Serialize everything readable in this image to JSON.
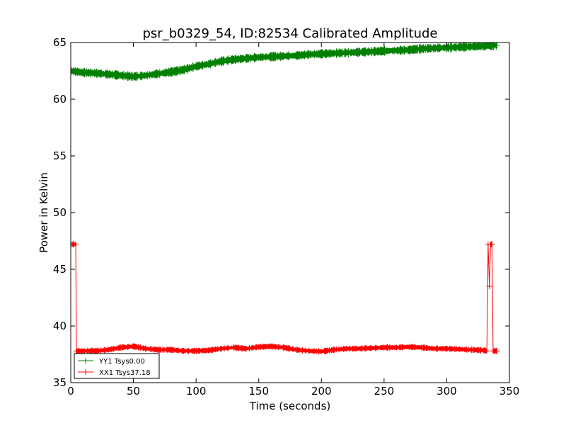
{
  "chart_data": {
    "type": "line",
    "title": "psr_b0329_54, ID:82534 Calibrated Amplitude",
    "xlabel": "Time (seconds)",
    "ylabel": "Power in Kelvin",
    "xlim": [
      0,
      350
    ],
    "ylim": [
      35,
      65
    ],
    "xticks": [
      0,
      50,
      100,
      150,
      200,
      250,
      300,
      350
    ],
    "yticks": [
      35,
      40,
      45,
      50,
      55,
      60,
      65
    ],
    "xtick_labels": [
      "0",
      "50",
      "100",
      "150",
      "200",
      "250",
      "300",
      "350"
    ],
    "ytick_labels": [
      "35",
      "40",
      "45",
      "50",
      "55",
      "60",
      "65"
    ],
    "grid": false,
    "legend_position": "lower-left",
    "series": [
      {
        "name": "YY1 Tsys0.00",
        "color": "#008000",
        "marker": "+",
        "band_halfwidth": 0.3,
        "x": [
          0,
          10,
          20,
          30,
          40,
          50,
          60,
          70,
          80,
          90,
          100,
          110,
          120,
          130,
          140,
          150,
          160,
          170,
          180,
          190,
          200,
          210,
          220,
          230,
          240,
          250,
          260,
          270,
          280,
          290,
          300,
          310,
          320,
          330,
          340
        ],
        "values": [
          62.5,
          62.35,
          62.3,
          62.2,
          62.1,
          62.0,
          62.1,
          62.25,
          62.4,
          62.6,
          62.9,
          63.1,
          63.35,
          63.5,
          63.6,
          63.7,
          63.75,
          63.8,
          63.85,
          63.95,
          64.0,
          64.05,
          64.1,
          64.15,
          64.2,
          64.25,
          64.3,
          64.35,
          64.45,
          64.5,
          64.55,
          64.6,
          64.65,
          64.7,
          64.75
        ]
      },
      {
        "name": "XX1 Tsys37.18",
        "color": "#ff0000",
        "marker": "+",
        "band_halfwidth": 0.2,
        "x": [
          1,
          4,
          4.5,
          6,
          10,
          20,
          30,
          40,
          50,
          60,
          70,
          80,
          90,
          100,
          110,
          120,
          130,
          140,
          150,
          160,
          170,
          180,
          190,
          200,
          210,
          220,
          230,
          240,
          250,
          260,
          270,
          280,
          290,
          300,
          310,
          320,
          330,
          332,
          333,
          334,
          335,
          336,
          337,
          338,
          340
        ],
        "values": [
          47.2,
          47.2,
          37.8,
          37.8,
          37.8,
          37.8,
          37.9,
          38.1,
          38.2,
          38.0,
          37.9,
          37.9,
          37.8,
          37.8,
          37.85,
          38.0,
          38.1,
          38.0,
          38.15,
          38.2,
          38.1,
          37.9,
          37.8,
          37.75,
          37.9,
          38.0,
          38.0,
          38.05,
          38.1,
          38.1,
          38.15,
          38.1,
          38.0,
          38.0,
          37.95,
          37.9,
          37.85,
          37.8,
          47.2,
          43.5,
          47.2,
          47.2,
          37.8,
          37.8,
          37.8
        ]
      }
    ]
  }
}
